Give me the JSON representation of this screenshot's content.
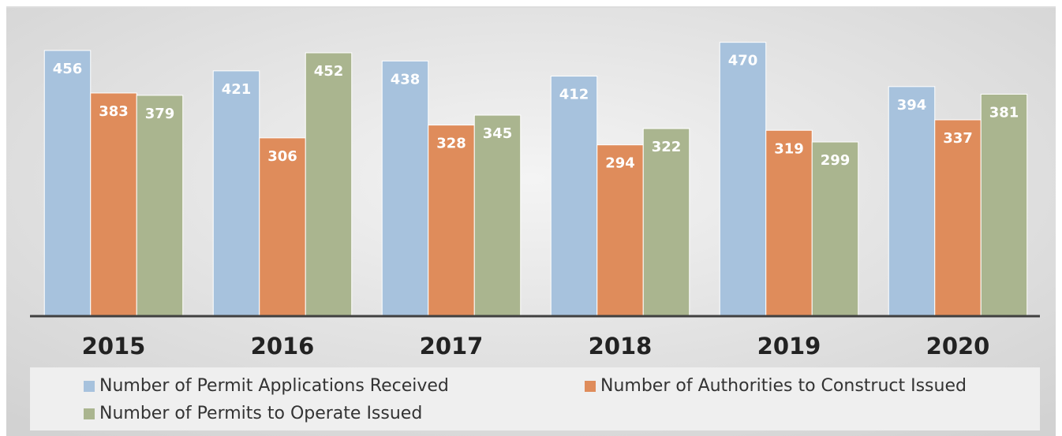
{
  "chart_data": {
    "type": "bar",
    "categories": [
      "2015",
      "2016",
      "2017",
      "2018",
      "2019",
      "2020"
    ],
    "series": [
      {
        "name": "Number of Permit Applications Received",
        "color": "#a7c2dd",
        "values": [
          456,
          421,
          438,
          412,
          470,
          394
        ]
      },
      {
        "name": "Number of Authorities to Construct Issued",
        "color": "#df8c5b",
        "values": [
          383,
          306,
          328,
          294,
          319,
          337
        ]
      },
      {
        "name": "Number of Permits to Operate Issued",
        "color": "#aab58f",
        "values": [
          379,
          452,
          345,
          322,
          299,
          381
        ]
      }
    ],
    "ylim": [
      0,
      500
    ],
    "grid": false
  }
}
